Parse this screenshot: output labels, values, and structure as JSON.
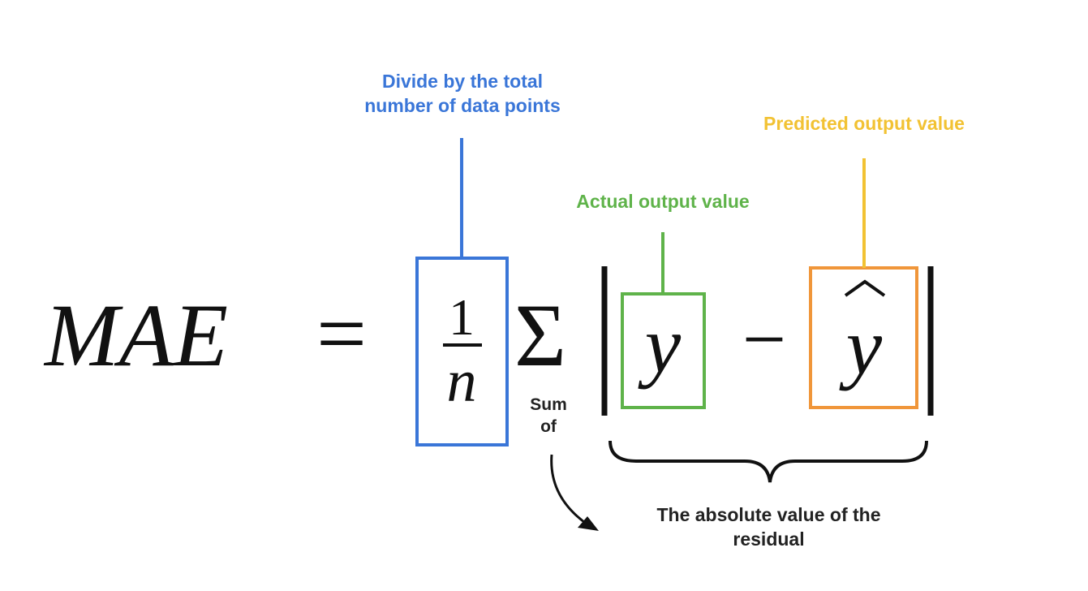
{
  "formula": {
    "lhs": "MAE",
    "equals": "=",
    "numerator": "1",
    "denominator": "n",
    "sigma": "Σ",
    "actual": "y",
    "minus": "−",
    "predicted": "y"
  },
  "annotations": {
    "divide_line1": "Divide by the total",
    "divide_line2": "number of data points",
    "predicted": "Predicted output value",
    "actual": "Actual output value",
    "sum_line1": "Sum",
    "sum_line2": "of",
    "residual_line1": "The absolute value of the",
    "residual_line2": "residual"
  },
  "colors": {
    "blue": "#3a76d8",
    "green": "#5fb34a",
    "orange": "#f0963a",
    "yellow": "#f2c233",
    "ink": "#111111",
    "annotation_ink": "#222222"
  }
}
